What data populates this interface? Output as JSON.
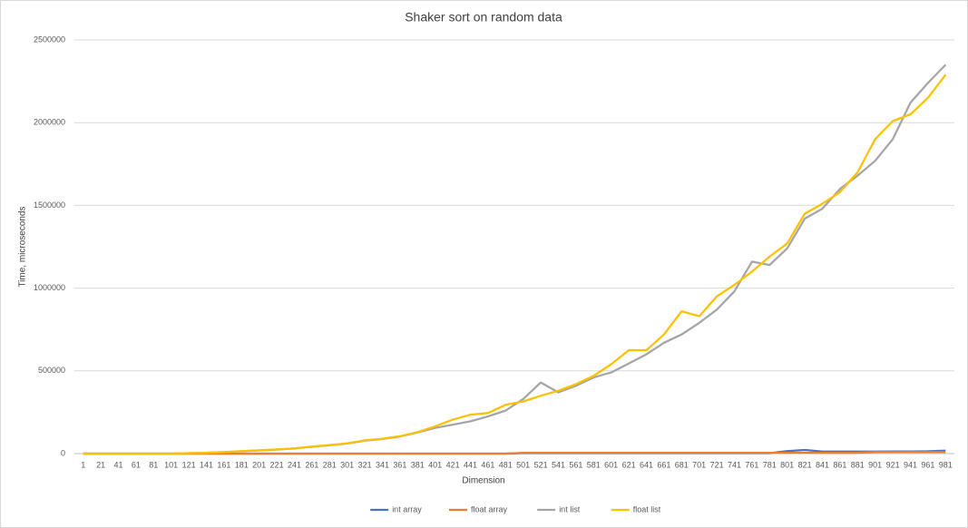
{
  "chart_data": {
    "type": "line",
    "title": "Shaker sort on random data",
    "x_label": "Dimension",
    "y_label": "Time, microseconds",
    "categories": [
      1,
      21,
      41,
      61,
      81,
      101,
      121,
      141,
      161,
      181,
      201,
      221,
      241,
      261,
      281,
      301,
      321,
      341,
      361,
      381,
      401,
      421,
      441,
      461,
      481,
      501,
      521,
      541,
      561,
      581,
      601,
      621,
      641,
      661,
      681,
      701,
      721,
      741,
      761,
      781,
      801,
      821,
      841,
      861,
      881,
      901,
      921,
      941,
      961,
      981
    ],
    "series": [
      {
        "name": "int array",
        "color": "#4472c4",
        "values": [
          0,
          0,
          0,
          0,
          0,
          0,
          0,
          0,
          0,
          0,
          0,
          0,
          0,
          0,
          0,
          0,
          0,
          0,
          0,
          0,
          0,
          0,
          0,
          0,
          0,
          3000,
          3000,
          3000,
          3000,
          3000,
          3000,
          3000,
          3000,
          3000,
          3000,
          3000,
          3000,
          3000,
          3000,
          3000,
          15000,
          22000,
          12000,
          12000,
          12000,
          12000,
          13000,
          13000,
          14000,
          18000
        ]
      },
      {
        "name": "float array",
        "color": "#ed7d31",
        "values": [
          0,
          0,
          0,
          0,
          0,
          0,
          0,
          0,
          0,
          0,
          0,
          0,
          0,
          0,
          0,
          0,
          0,
          0,
          0,
          0,
          0,
          0,
          0,
          0,
          0,
          5000,
          5000,
          5000,
          5000,
          5000,
          5000,
          5000,
          5000,
          5000,
          5000,
          5000,
          5000,
          5000,
          5000,
          5000,
          5000,
          5000,
          5000,
          5000,
          5000,
          10000,
          10000,
          10000,
          10000,
          10000
        ]
      },
      {
        "name": "int list",
        "color": "#a5a5a5",
        "values": [
          0,
          0,
          0,
          0,
          0,
          0,
          3000,
          5000,
          9000,
          14000,
          19000,
          24000,
          31000,
          41000,
          51000,
          61000,
          78000,
          88000,
          103000,
          128000,
          155000,
          175000,
          195000,
          225000,
          260000,
          330000,
          430000,
          370000,
          410000,
          460000,
          490000,
          545000,
          600000,
          670000,
          720000,
          790000,
          870000,
          980000,
          1160000,
          1140000,
          1240000,
          1420000,
          1480000,
          1600000,
          1680000,
          1770000,
          1900000,
          2120000,
          2240000,
          2350000
        ]
      },
      {
        "name": "float list",
        "color": "#ffc000",
        "values": [
          0,
          0,
          0,
          0,
          0,
          0,
          3000,
          5000,
          10000,
          15000,
          20000,
          25000,
          32000,
          42000,
          52000,
          62000,
          80000,
          90000,
          105000,
          130000,
          165000,
          205000,
          235000,
          245000,
          295000,
          315000,
          350000,
          380000,
          420000,
          470000,
          540000,
          625000,
          625000,
          720000,
          860000,
          830000,
          950000,
          1020000,
          1100000,
          1190000,
          1270000,
          1450000,
          1510000,
          1580000,
          1700000,
          1900000,
          2010000,
          2050000,
          2150000,
          2290000
        ]
      }
    ],
    "ylim": [
      0,
      2500000
    ],
    "yticks": [
      0,
      500000,
      1000000,
      1500000,
      2000000,
      2500000
    ],
    "grid": true,
    "legend": "bottom"
  }
}
